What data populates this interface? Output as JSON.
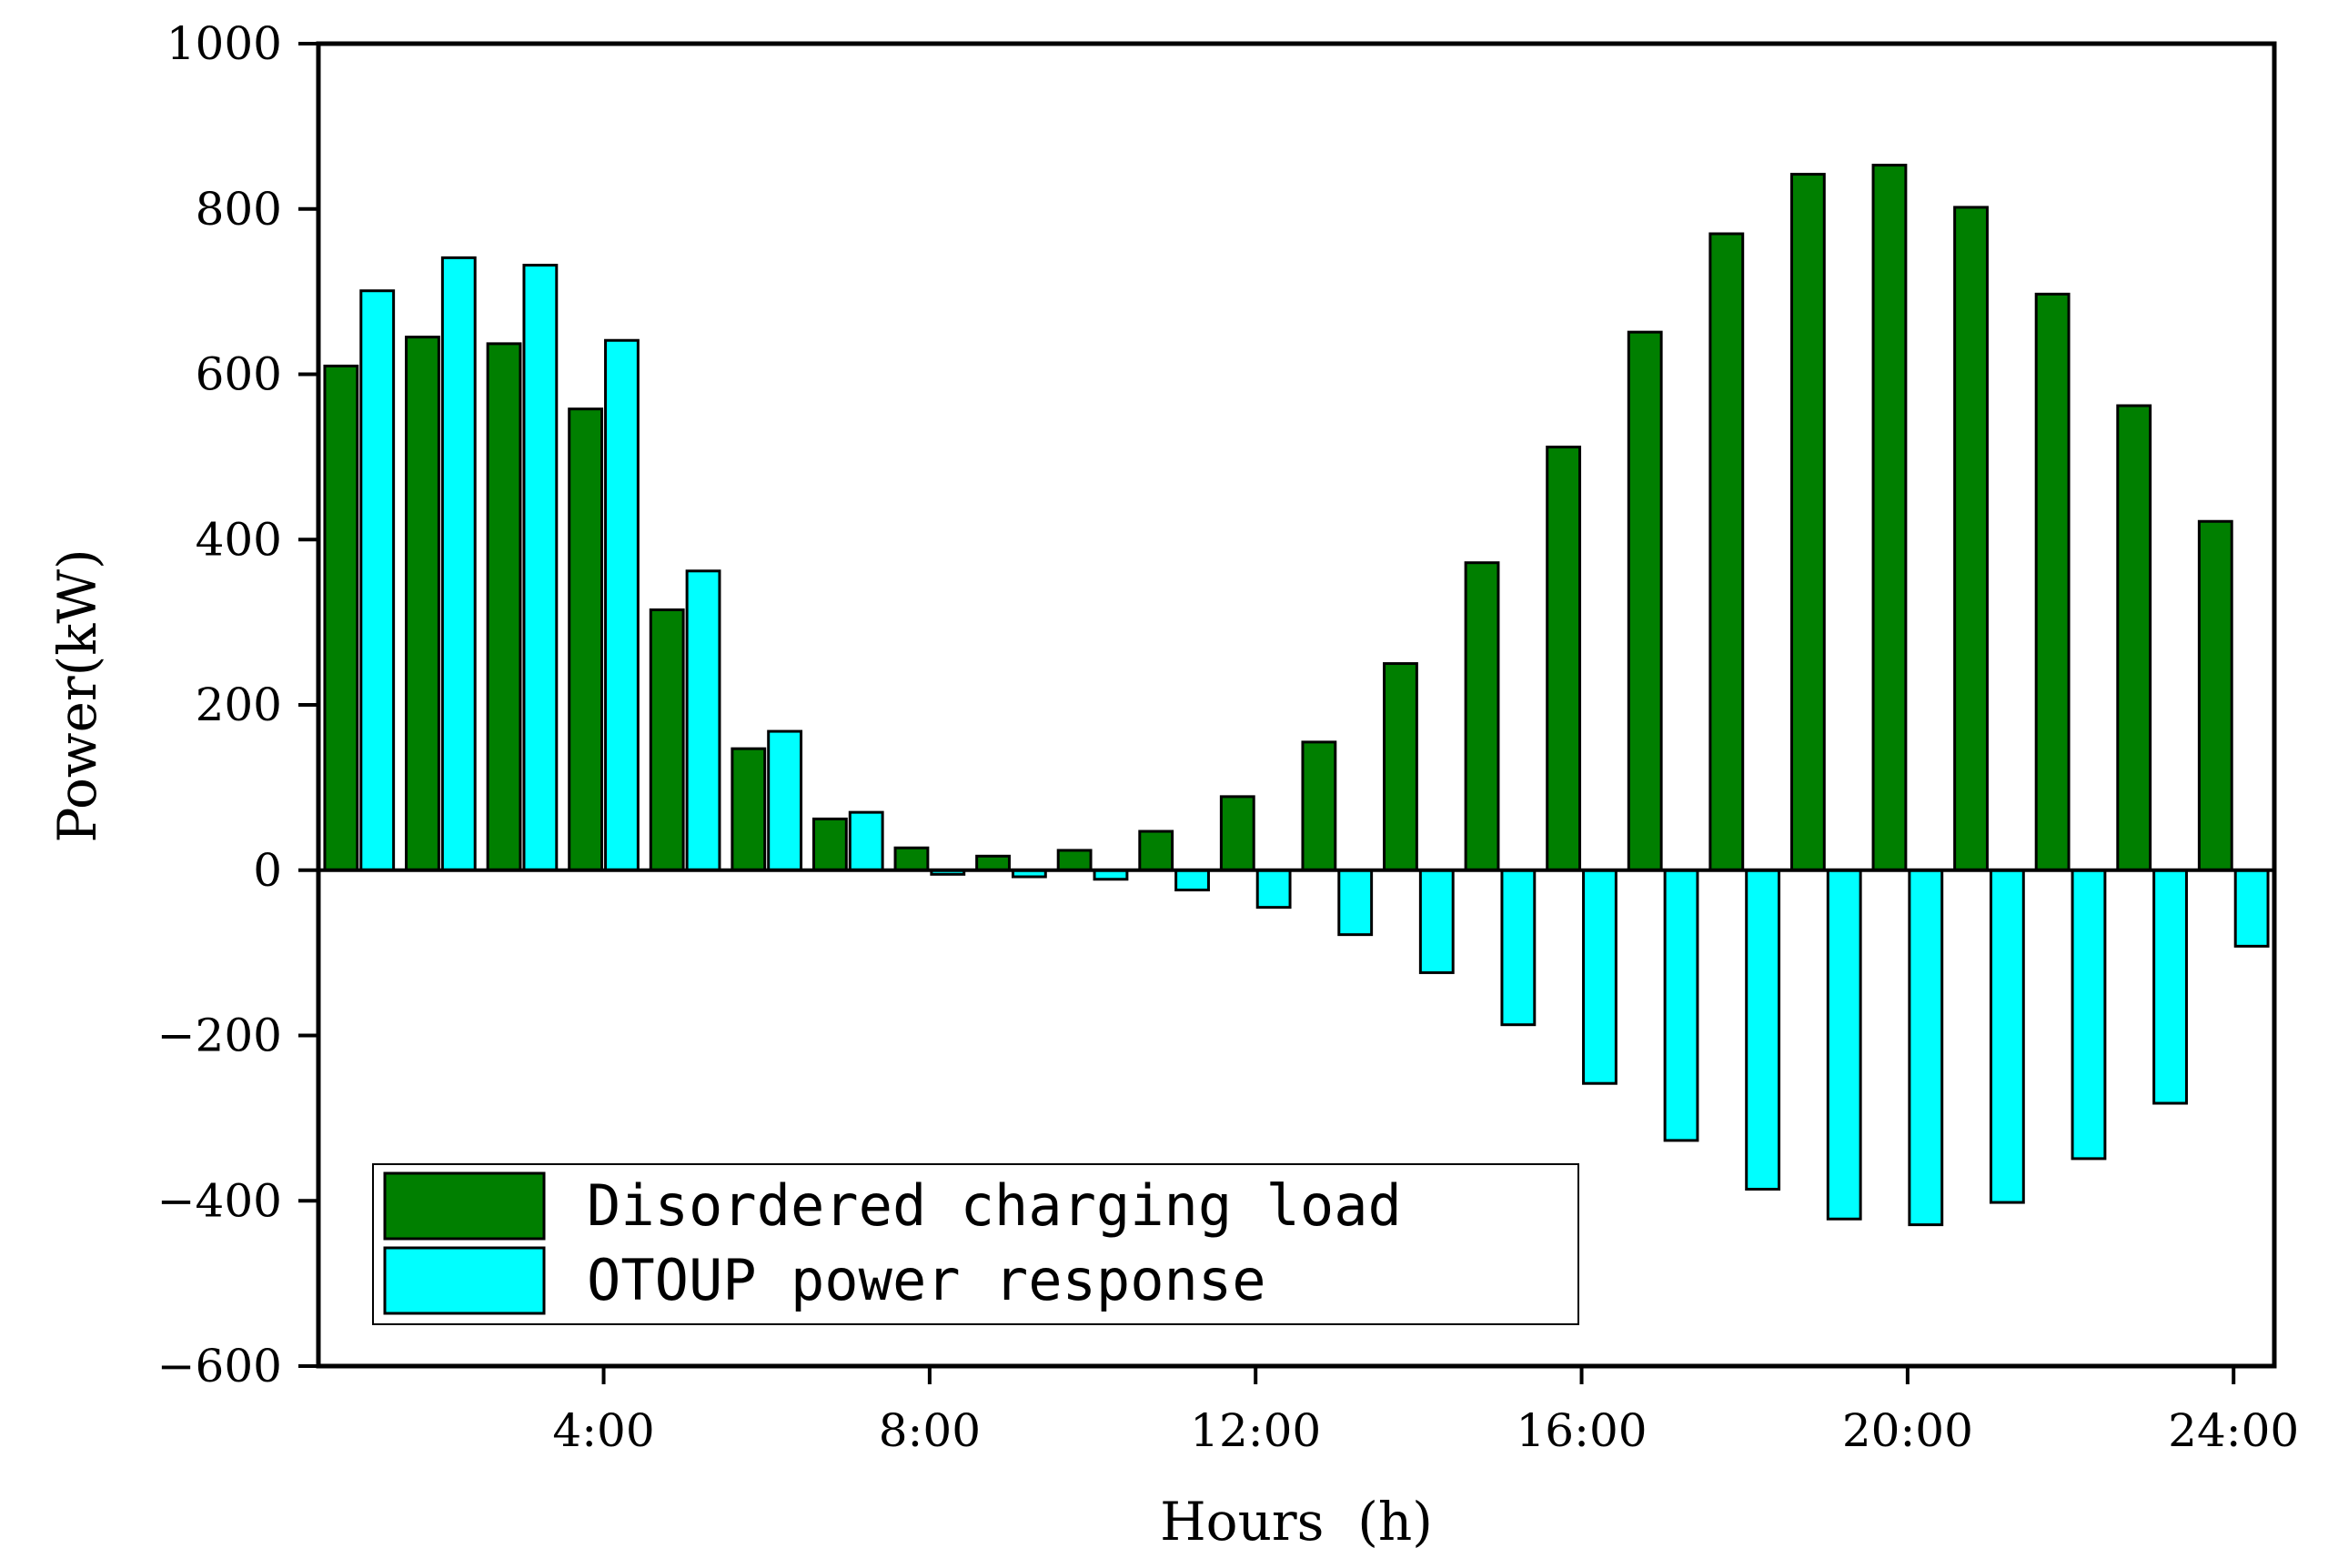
{
  "chart_data": {
    "type": "bar",
    "title": "",
    "xlabel": "Hours  (h)",
    "ylabel": "Power(kW)",
    "ylim": [
      -600,
      1000
    ],
    "xlim": [
      0.5,
      24.5
    ],
    "yticks": [
      1000,
      800,
      600,
      400,
      200,
      0,
      -200,
      -400,
      -600
    ],
    "ytick_labels": [
      "1000",
      "800",
      "600",
      "400",
      "200",
      "0",
      "−200",
      "−400",
      "−600"
    ],
    "xticks": [
      4,
      8,
      12,
      16,
      20,
      24
    ],
    "xtick_labels": [
      "4:00",
      "8:00",
      "12:00",
      "16:00",
      "20:00",
      "24:00"
    ],
    "categories": [
      1,
      2,
      3,
      4,
      5,
      6,
      7,
      8,
      9,
      10,
      11,
      12,
      13,
      14,
      15,
      16,
      17,
      18,
      19,
      20,
      21,
      22,
      23,
      24
    ],
    "legend_position": "bottom-left",
    "series": [
      {
        "name": "Disordered charging load",
        "color": "#007f00",
        "values": [
          610,
          645,
          637,
          558,
          315,
          147,
          62,
          27,
          17,
          24,
          47,
          89,
          155,
          250,
          372,
          512,
          651,
          770,
          842,
          853,
          802,
          697,
          562,
          422
        ]
      },
      {
        "name": "OTOUP power response",
        "color": "#00ffff",
        "values": [
          701,
          741,
          732,
          641,
          362,
          168,
          70,
          -5,
          -8,
          -11,
          -24,
          -45,
          -78,
          -124,
          -187,
          -258,
          -327,
          -386,
          -422,
          -429,
          -402,
          -349,
          -282,
          -92
        ]
      }
    ]
  }
}
